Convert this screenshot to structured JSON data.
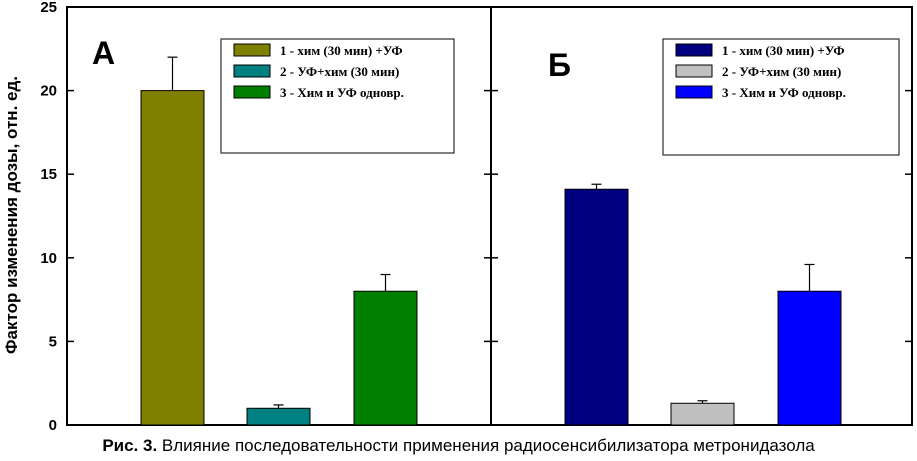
{
  "caption": {
    "prefix": "Рис. 3.",
    "text": "Влияние последовательности применения радиосенсибилизатора метронидазола"
  },
  "chart_data": {
    "type": "bar",
    "ylabel": "Фактор изменения дозы, отн. ед.",
    "ylim": [
      0,
      25
    ],
    "yticks": [
      0,
      5,
      10,
      15,
      20,
      25
    ],
    "panels": [
      {
        "label": "А",
        "legend_position": "top-right",
        "series": [
          {
            "name": "1 - хим (30 мин) +УФ",
            "value": 20.0,
            "error": 2.0,
            "color": "#808000"
          },
          {
            "name": "2 - УФ+хим (30 мин)",
            "value": 1.0,
            "error": 0.2,
            "color": "#008080"
          },
          {
            "name": "3 - Хим и УФ одновр.",
            "value": 8.0,
            "error": 1.0,
            "color": "#008000"
          }
        ]
      },
      {
        "label": "Б",
        "legend_position": "top-right",
        "series": [
          {
            "name": "1 - хим (30 мин) +УФ",
            "value": 14.1,
            "error": 0.3,
            "color": "#000080"
          },
          {
            "name": "2 - УФ+хим (30 мин)",
            "value": 1.3,
            "error": 0.15,
            "color": "#c0c0c0"
          },
          {
            "name": "3 - Хим и УФ одновр.",
            "value": 8.0,
            "error": 1.6,
            "color": "#0000ff"
          }
        ]
      }
    ]
  }
}
